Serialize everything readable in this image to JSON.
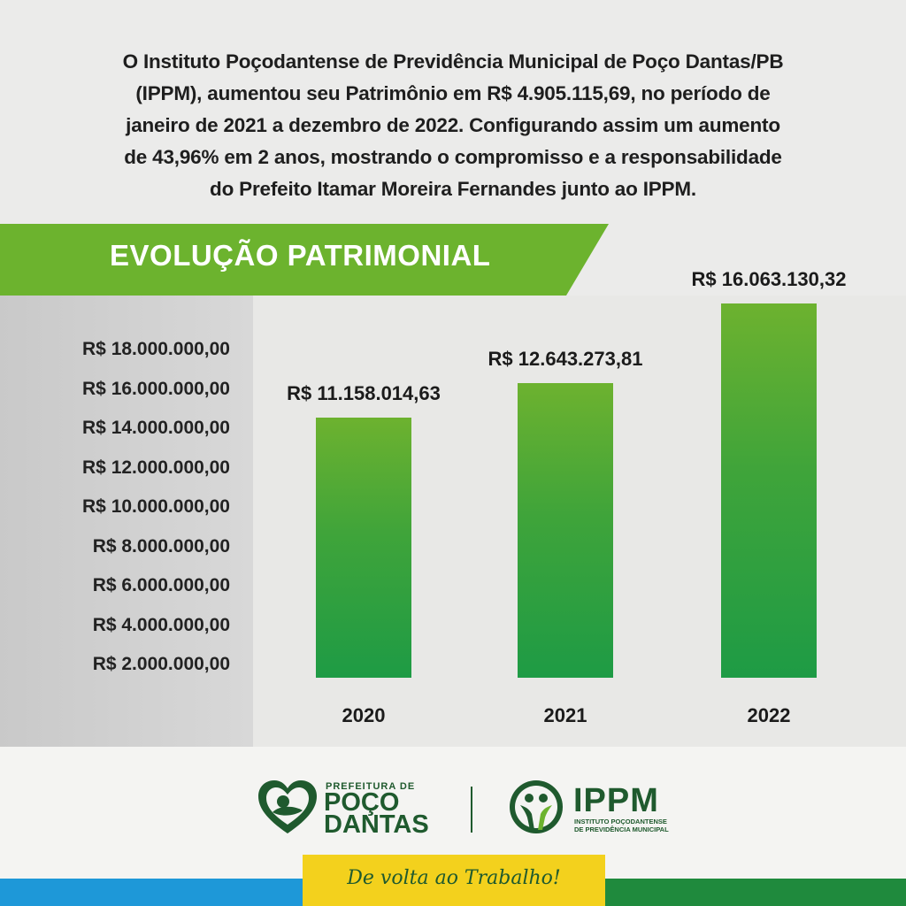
{
  "intro_lines": [
    "O Instituto Poçodantense de Previdência Municipal de Poço Dantas/PB",
    "(IPPM), aumentou seu Patrimônio em R$ 4.905.115,69, no período de",
    "janeiro de 2021 a dezembro de 2022. Configurando assim um aumento",
    "de 43,96% em 2 anos, mostrando o compromisso e a responsabilidade",
    "do Prefeito Itamar Moreira Fernandes junto ao IPPM."
  ],
  "colors": {
    "banner_green": "#6cb32e",
    "bar_top": "#6db22f",
    "bar_bottom": "#1e9b45",
    "brand_dark_green": "#1f5a2e",
    "stripe_blue": "#1e98d8",
    "stripe_yellow": "#f3d11d",
    "stripe_green": "#1f8a3d"
  },
  "chart_data": {
    "type": "bar",
    "title": "EVOLUÇÃO PATRIMONIAL",
    "categories": [
      "2020",
      "2021",
      "2022"
    ],
    "values": [
      11158014.63,
      12643273.81,
      16063130.32
    ],
    "value_labels": [
      "R$ 11.158.014,63",
      "R$ 12.643.273,81",
      "R$ 16.063.130,32"
    ],
    "yticks": [
      "R$ 18.000.000,00",
      "R$ 16.000.000,00",
      "R$ 14.000.000,00",
      "R$ 12.000.000,00",
      "R$ 10.000.000,00",
      "R$ 8.000.000,00",
      "R$ 6.000.000,00",
      "R$ 4.000.000,00",
      "R$ 2.000.000,00"
    ],
    "ylim": [
      2000000,
      18000000
    ],
    "grid": false,
    "xlabel": "",
    "ylabel": ""
  },
  "footer": {
    "prefeitura_small": "PREFEITURA DE",
    "prefeitura_line1": "POÇO",
    "prefeitura_line2": "DANTAS",
    "ippm_title": "IPPM",
    "ippm_sub_line1": "INSTITUTO POÇODANTENSE",
    "ippm_sub_line2": "DE PREVIDÊNCIA MUNICIPAL",
    "slogan": "De volta ao Trabalho!",
    "logo_left_icon": "heart-emblem-icon",
    "logo_right_icon": "people-emblem-icon"
  }
}
